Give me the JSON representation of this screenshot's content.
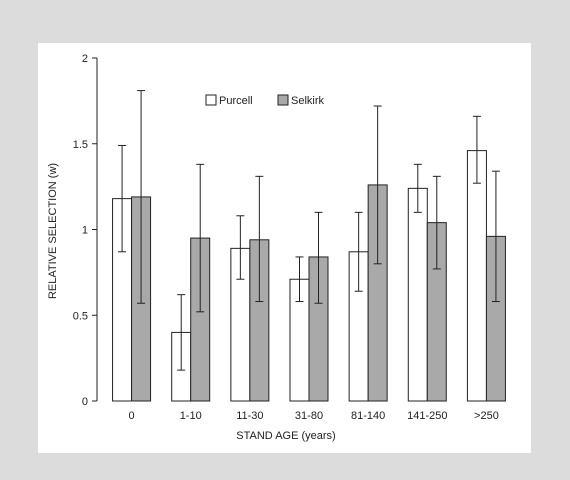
{
  "colors": {
    "background": "#dcdcdc",
    "panel": "#ffffff",
    "purcell_fill": "#ffffff",
    "selkirk_fill": "#a9a9a9",
    "stroke": "#222222"
  },
  "chart_data": {
    "type": "bar",
    "title": "",
    "xlabel": "STAND AGE (years)",
    "ylabel": "RELATIVE SELECTION (w)",
    "categories": [
      "0",
      "1-10",
      "11-30",
      "31-80",
      "81-140",
      "141-250",
      ">250"
    ],
    "ylim": [
      0,
      2
    ],
    "yticks": [
      "0",
      "0.5",
      "1",
      "1.5",
      "2"
    ],
    "yticks_values": [
      0,
      0.5,
      1,
      1.5,
      2
    ],
    "legend_position": "top-center",
    "grid": false,
    "error_bars": true,
    "series": [
      {
        "name": "Purcell",
        "values": [
          1.18,
          0.4,
          0.89,
          0.71,
          0.87,
          1.24,
          1.46
        ],
        "err_low": [
          0.87,
          0.18,
          0.71,
          0.58,
          0.64,
          1.1,
          1.27
        ],
        "err_high": [
          1.49,
          0.62,
          1.08,
          0.84,
          1.1,
          1.38,
          1.66
        ]
      },
      {
        "name": "Selkirk",
        "values": [
          1.19,
          0.95,
          0.94,
          0.84,
          1.26,
          1.04,
          0.96
        ],
        "err_low": [
          0.57,
          0.52,
          0.58,
          0.57,
          0.8,
          0.77,
          0.58
        ],
        "err_high": [
          1.81,
          1.38,
          1.31,
          1.1,
          1.72,
          1.31,
          1.34
        ]
      }
    ]
  }
}
